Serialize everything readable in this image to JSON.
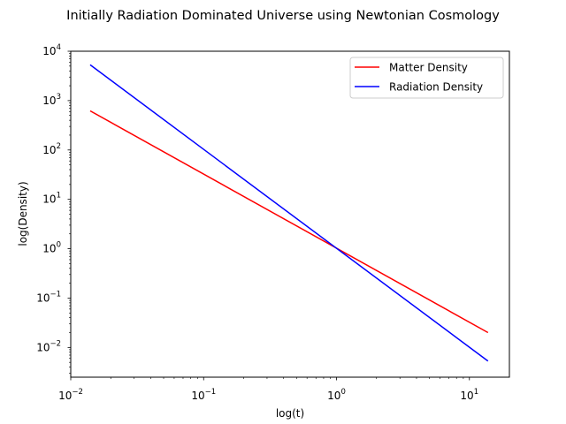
{
  "chart_data": {
    "type": "line",
    "title": "Initially Radiation Dominated Universe using Newtonian Cosmology",
    "xlabel": "log(t)",
    "ylabel": "log(Density)",
    "xscale": "log",
    "yscale": "log",
    "xlim": [
      0.01,
      20
    ],
    "ylim": [
      0.0025,
      10000
    ],
    "xticks": [
      {
        "value": 0.01,
        "base": "10",
        "exp": "−2"
      },
      {
        "value": 0.1,
        "base": "10",
        "exp": "−1"
      },
      {
        "value": 1,
        "base": "10",
        "exp": "0"
      },
      {
        "value": 10,
        "base": "10",
        "exp": "1"
      }
    ],
    "yticks": [
      {
        "value": 0.01,
        "base": "10",
        "exp": "−2"
      },
      {
        "value": 0.1,
        "base": "10",
        "exp": "−1"
      },
      {
        "value": 1,
        "base": "10",
        "exp": "0"
      },
      {
        "value": 10,
        "base": "10",
        "exp": "1"
      },
      {
        "value": 100,
        "base": "10",
        "exp": "2"
      },
      {
        "value": 1000,
        "base": "10",
        "exp": "3"
      },
      {
        "value": 10000,
        "base": "10",
        "exp": "4"
      }
    ],
    "grid": false,
    "legend": "top-right",
    "series": [
      {
        "name": "Matter Density",
        "color": "#ff0000",
        "x": [
          0.014,
          13.8
        ],
        "y": [
          620,
          0.02
        ]
      },
      {
        "name": "Radiation Density",
        "color": "#0000ff",
        "x": [
          0.014,
          13.8
        ],
        "y": [
          5300,
          0.0053
        ]
      }
    ]
  }
}
